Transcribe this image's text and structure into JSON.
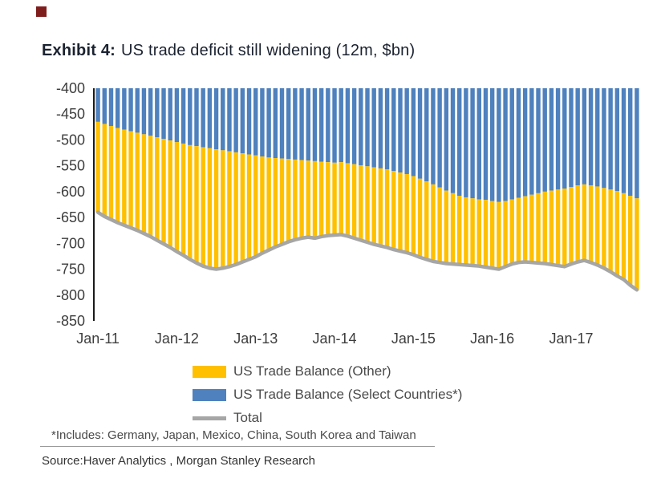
{
  "colors": {
    "corner_mark": "#7f1d1d",
    "axis_line": "#1a1a1a",
    "axis_text": "#3d3d3d"
  },
  "header": {
    "exhibit_label": "Exhibit 4:",
    "title": "US trade deficit still widening (12m, $bn)"
  },
  "footnote": {
    "text": "*Includes: Germany, Japan, Mexico, China, South Korea and Taiwan"
  },
  "source": {
    "text": "Source:Haver Analytics , Morgan Stanley Research"
  },
  "chart_data": {
    "type": "bar",
    "subtype": "stacked-bars-with-total-line",
    "title": "US trade deficit still widening (12m, $bn)",
    "xlabel": "",
    "ylabel": "",
    "ylim": [
      -850,
      -400
    ],
    "grid": false,
    "legend_position": "bottom-left",
    "months": [
      "Jan-11",
      "Feb-11",
      "Mar-11",
      "Apr-11",
      "May-11",
      "Jun-11",
      "Jul-11",
      "Aug-11",
      "Sep-11",
      "Oct-11",
      "Nov-11",
      "Dec-11",
      "Jan-12",
      "Feb-12",
      "Mar-12",
      "Apr-12",
      "May-12",
      "Jun-12",
      "Jul-12",
      "Aug-12",
      "Sep-12",
      "Oct-12",
      "Nov-12",
      "Dec-12",
      "Jan-13",
      "Feb-13",
      "Mar-13",
      "Apr-13",
      "May-13",
      "Jun-13",
      "Jul-13",
      "Aug-13",
      "Sep-13",
      "Oct-13",
      "Nov-13",
      "Dec-13",
      "Jan-14",
      "Feb-14",
      "Mar-14",
      "Apr-14",
      "May-14",
      "Jun-14",
      "Jul-14",
      "Aug-14",
      "Sep-14",
      "Oct-14",
      "Nov-14",
      "Dec-14",
      "Jan-15",
      "Feb-15",
      "Mar-15",
      "Apr-15",
      "May-15",
      "Jun-15",
      "Jul-15",
      "Aug-15",
      "Sep-15",
      "Oct-15",
      "Nov-15",
      "Dec-15",
      "Jan-16",
      "Feb-16",
      "Mar-16",
      "Apr-16",
      "May-16",
      "Jun-16",
      "Jul-16",
      "Aug-16",
      "Sep-16",
      "Oct-16",
      "Nov-16",
      "Dec-16",
      "Jan-17",
      "Feb-17",
      "Mar-17",
      "Apr-17",
      "May-17",
      "Jun-17",
      "Jul-17",
      "Aug-17",
      "Sep-17",
      "Oct-17",
      "Nov-17"
    ],
    "y_axis": {
      "min": -850,
      "max": -400,
      "step": 50,
      "ticks": [
        -400,
        -450,
        -500,
        -550,
        -600,
        -650,
        -700,
        -750,
        -800,
        -850
      ]
    },
    "x_axis": {
      "tick_indices": [
        0,
        12,
        24,
        36,
        48,
        60,
        72
      ],
      "tick_labels": [
        "Jan-11",
        "Jan-12",
        "Jan-13",
        "Jan-14",
        "Jan-15",
        "Jan-16",
        "Jan-17"
      ]
    },
    "stacking_note": "Blue (select countries) stacked from 0 and clipped at axis top -400; yellow (other) stacked below it; gray line traces the total.",
    "series": [
      {
        "key": "other",
        "name": "US Trade Balance (Other)",
        "type": "bar",
        "color": "#FFC000",
        "values": [
          -175,
          -179,
          -181,
          -183,
          -185,
          -187,
          -189,
          -192,
          -195,
          -199,
          -203,
          -207,
          -212,
          -216,
          -221,
          -226,
          -230,
          -232,
          -232,
          -228,
          -223,
          -217,
          -210,
          -203,
          -196,
          -187,
          -179,
          -172,
          -166,
          -160,
          -155,
          -151,
          -148,
          -149,
          -145,
          -142,
          -140,
          -140,
          -141,
          -143,
          -145,
          -147,
          -149,
          -150,
          -151,
          -152,
          -152,
          -152,
          -152,
          -152,
          -151,
          -149,
          -145,
          -141,
          -137,
          -133,
          -131,
          -130,
          -129,
          -130,
          -130,
          -130,
          -127,
          -125,
          -125,
          -127,
          -131,
          -135,
          -139,
          -143,
          -147,
          -151,
          -149,
          -148,
          -147,
          -149,
          -152,
          -155,
          -159,
          -164,
          -167,
          -173,
          -177
        ]
      },
      {
        "key": "select",
        "name": "US Trade Balance (Select Countries*)",
        "type": "bar",
        "color": "#4E81BD",
        "values": [
          -465,
          -469,
          -473,
          -477,
          -480,
          -483,
          -486,
          -489,
          -492,
          -495,
          -498,
          -501,
          -504,
          -507,
          -510,
          -512,
          -514,
          -516,
          -518,
          -520,
          -522,
          -524,
          -526,
          -528,
          -530,
          -532,
          -534,
          -535,
          -536,
          -537,
          -538,
          -539,
          -540,
          -541,
          -542,
          -543,
          -544,
          -543,
          -545,
          -547,
          -549,
          -551,
          -553,
          -555,
          -557,
          -560,
          -563,
          -566,
          -570,
          -575,
          -580,
          -586,
          -592,
          -598,
          -603,
          -608,
          -611,
          -613,
          -615,
          -616,
          -618,
          -620,
          -618,
          -615,
          -612,
          -609,
          -606,
          -603,
          -600,
          -598,
          -596,
          -594,
          -591,
          -588,
          -586,
          -588,
          -590,
          -593,
          -596,
          -599,
          -603,
          -608,
          -613
        ]
      },
      {
        "key": "total",
        "name": "Total",
        "type": "line",
        "color": "#A6A6A6",
        "values": [
          -640,
          -648,
          -654,
          -660,
          -665,
          -670,
          -675,
          -681,
          -687,
          -694,
          -701,
          -708,
          -716,
          -723,
          -731,
          -738,
          -744,
          -748,
          -750,
          -748,
          -745,
          -741,
          -736,
          -731,
          -726,
          -719,
          -713,
          -707,
          -702,
          -697,
          -693,
          -690,
          -688,
          -690,
          -687,
          -685,
          -684,
          -683,
          -686,
          -690,
          -694,
          -698,
          -702,
          -705,
          -708,
          -712,
          -715,
          -718,
          -722,
          -727,
          -731,
          -735,
          -737,
          -739,
          -740,
          -741,
          -742,
          -743,
          -744,
          -746,
          -748,
          -750,
          -745,
          -740,
          -737,
          -736,
          -737,
          -738,
          -739,
          -741,
          -743,
          -745,
          -740,
          -736,
          -733,
          -737,
          -742,
          -748,
          -755,
          -763,
          -770,
          -781,
          -790
        ]
      }
    ]
  }
}
